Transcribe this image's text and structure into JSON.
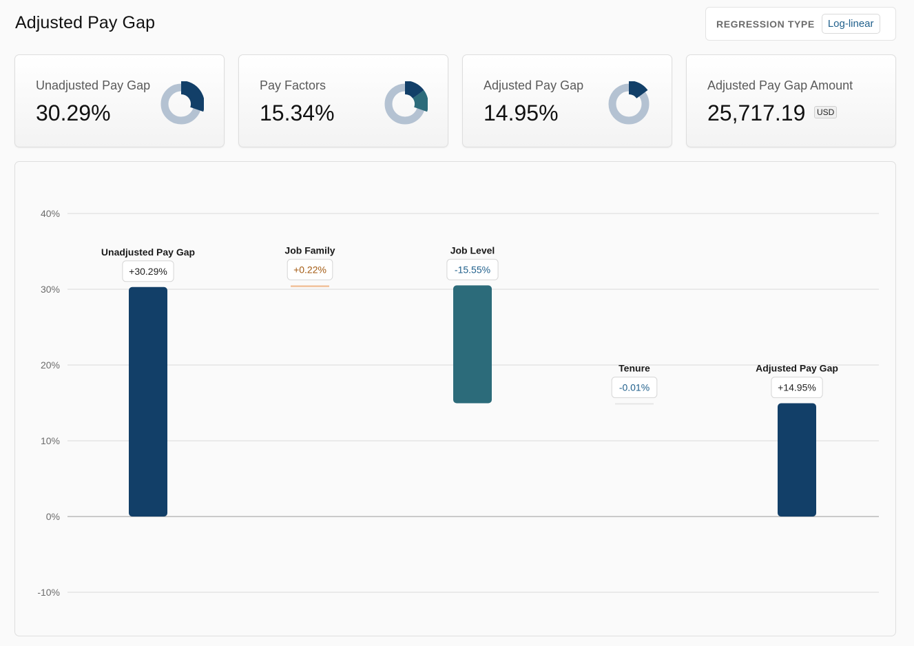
{
  "header": {
    "title": "Adjusted Pay Gap",
    "regression_label": "REGRESSION TYPE",
    "regression_value": "Log-linear"
  },
  "kpis": [
    {
      "label": "Unadjusted Pay Gap",
      "value": "30.29%",
      "donut_fraction": 0.3029,
      "donut_color": "#123f68"
    },
    {
      "label": "Pay Factors",
      "value": "15.34%",
      "donut_fraction": 0.1534,
      "donut_color": "#2c6b7a",
      "donut_lead_fraction": 0.15
    },
    {
      "label": "Adjusted Pay Gap",
      "value": "14.95%",
      "donut_fraction": 0.1495,
      "donut_color": "#123f68"
    },
    {
      "label": "Adjusted Pay Gap Amount",
      "value": "25,717.19",
      "unit": "USD"
    }
  ],
  "colors": {
    "navy": "#123f68",
    "teal": "#2c6b7a",
    "orange": "#a35a12",
    "orange_bar": "#f0bf98",
    "blue_text": "#1f5f8b",
    "donut_track": "#b4c2d2",
    "grid": "#d9d9d9"
  },
  "chart_data": {
    "type": "bar",
    "subtype": "waterfall",
    "ylim": [
      -10,
      40
    ],
    "yticks": [
      40,
      30,
      20,
      10,
      0,
      -10
    ],
    "ytick_labels": [
      "40%",
      "30%",
      "20%",
      "10%",
      "0%",
      "-10%"
    ],
    "categories": [
      "Unadjusted Pay Gap",
      "Job Family",
      "Job Level",
      "Tenure",
      "Adjusted Pay Gap"
    ],
    "values": [
      30.29,
      0.22,
      -15.55,
      -0.01,
      14.95
    ],
    "value_labels": [
      "+30.29%",
      "+0.22%",
      "-15.55%",
      "-0.01%",
      "+14.95%"
    ],
    "bar_kind": [
      "total",
      "delta",
      "delta",
      "delta",
      "total"
    ]
  }
}
